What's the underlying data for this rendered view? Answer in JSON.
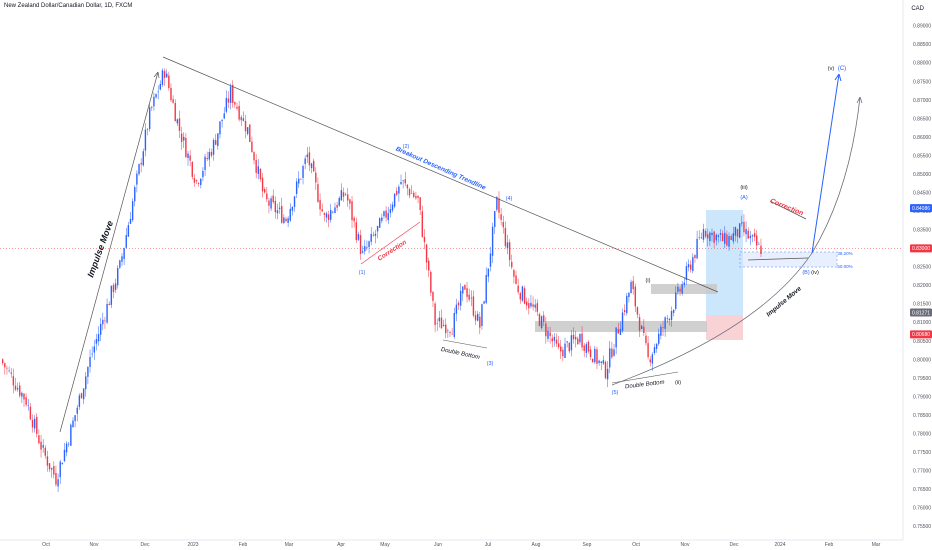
{
  "header": {
    "title": "New Zealand Dollar/Canadian Dollar, 1D, FXCM",
    "currency": "CAD"
  },
  "colors": {
    "up": "#2962ff",
    "down": "#f23645",
    "trendline": "#555555",
    "wave_blue": "#2962ff",
    "correction_red": "#f23645",
    "projection_blue": "#2962ff",
    "projection_gray": "#6a6d78",
    "box_blue": "#bbdefb",
    "box_red": "#f8c7cc",
    "box_gray": "#c8c8c8",
    "price_line": "#f23645"
  },
  "chart_data": {
    "type": "candlestick",
    "symbol": "New Zealand Dollar/Canadian Dollar",
    "timeframe": "1D",
    "source": "FXCM",
    "x_tick_labels": [
      "Oct",
      "Nov",
      "Dec",
      "2023",
      "Feb",
      "Mar",
      "Apr",
      "May",
      "Jun",
      "Jul",
      "Aug",
      "Sep",
      "Oct",
      "Nov",
      "Dec",
      "2024",
      "Feb",
      "Mar"
    ],
    "y_tick_labels": [
      "0.89000",
      "0.88500",
      "0.88000",
      "0.87500",
      "0.87000",
      "0.86500",
      "0.86000",
      "0.85500",
      "0.85000",
      "0.84500",
      "0.84000",
      "0.83500",
      "0.83000",
      "0.82500",
      "0.82000",
      "0.81500",
      "0.81000",
      "0.80500",
      "0.80000",
      "0.79500",
      "0.79000",
      "0.78500",
      "0.78000",
      "0.77500",
      "0.77000",
      "0.76500",
      "0.76000",
      "0.75500"
    ],
    "ylim": [
      0.7535,
      0.8935
    ],
    "price_labels": [
      {
        "text": "0.84086",
        "value": 0.84086,
        "color": "#2962ff"
      },
      {
        "text": "0.83000",
        "value": 0.83,
        "color": "#f23645"
      },
      {
        "text": "0.81271",
        "value": 0.81271,
        "color": "#6a6d78"
      },
      {
        "text": "0.80680",
        "value": 0.8068,
        "color": "#f23645"
      }
    ],
    "current_price": 0.83,
    "path_keypoints": [
      {
        "bar": 0,
        "price": 0.8
      },
      {
        "bar": 12,
        "price": 0.789
      },
      {
        "bar": 20,
        "price": 0.775
      },
      {
        "bar": 26,
        "price": 0.768
      },
      {
        "bar": 34,
        "price": 0.783
      },
      {
        "bar": 42,
        "price": 0.8
      },
      {
        "bar": 56,
        "price": 0.825
      },
      {
        "bar": 70,
        "price": 0.866
      },
      {
        "bar": 77,
        "price": 0.878
      },
      {
        "bar": 84,
        "price": 0.862
      },
      {
        "bar": 92,
        "price": 0.848
      },
      {
        "bar": 100,
        "price": 0.858
      },
      {
        "bar": 108,
        "price": 0.872
      },
      {
        "bar": 116,
        "price": 0.862
      },
      {
        "bar": 124,
        "price": 0.843
      },
      {
        "bar": 134,
        "price": 0.838
      },
      {
        "bar": 144,
        "price": 0.855
      },
      {
        "bar": 152,
        "price": 0.838
      },
      {
        "bar": 162,
        "price": 0.845
      },
      {
        "bar": 170,
        "price": 0.828
      },
      {
        "bar": 180,
        "price": 0.838
      },
      {
        "bar": 188,
        "price": 0.848
      },
      {
        "bar": 196,
        "price": 0.843
      },
      {
        "bar": 204,
        "price": 0.81
      },
      {
        "bar": 212,
        "price": 0.809
      },
      {
        "bar": 218,
        "price": 0.82
      },
      {
        "bar": 225,
        "price": 0.809
      },
      {
        "bar": 233,
        "price": 0.842
      },
      {
        "bar": 242,
        "price": 0.82
      },
      {
        "bar": 252,
        "price": 0.812
      },
      {
        "bar": 262,
        "price": 0.802
      },
      {
        "bar": 272,
        "price": 0.806
      },
      {
        "bar": 284,
        "price": 0.797
      },
      {
        "bar": 296,
        "price": 0.82
      },
      {
        "bar": 304,
        "price": 0.8
      },
      {
        "bar": 312,
        "price": 0.81
      },
      {
        "bar": 320,
        "price": 0.82
      },
      {
        "bar": 330,
        "price": 0.835
      },
      {
        "bar": 340,
        "price": 0.832
      },
      {
        "bar": 348,
        "price": 0.835
      },
      {
        "bar": 356,
        "price": 0.83
      }
    ],
    "annotations": [
      {
        "kind": "text",
        "text": "Impulse Move",
        "color": "#131722"
      },
      {
        "kind": "text",
        "text": "Breakout Descending Trendline",
        "color": "#2962ff"
      },
      {
        "kind": "text",
        "text": "Correction",
        "color": "#f23645"
      },
      {
        "kind": "text",
        "text": "Double Bottom",
        "color": "#131722"
      },
      {
        "kind": "text",
        "text": "Double Bottom",
        "color": "#131722"
      },
      {
        "kind": "text",
        "text": "Correction",
        "color": "#f23645"
      },
      {
        "kind": "text",
        "text": "Impulse Move",
        "color": "#131722"
      },
      {
        "kind": "wave",
        "text": "(1)",
        "color": "#2962ff"
      },
      {
        "kind": "wave",
        "text": "(2)",
        "color": "#2962ff"
      },
      {
        "kind": "wave",
        "text": "(3)",
        "color": "#2962ff"
      },
      {
        "kind": "wave",
        "text": "(4)",
        "color": "#2962ff"
      },
      {
        "kind": "wave",
        "text": "(5)",
        "color": "#2962ff"
      },
      {
        "kind": "wave",
        "text": "(i)",
        "color": "#131722"
      },
      {
        "kind": "wave",
        "text": "(ii)",
        "color": "#131722"
      },
      {
        "kind": "wave",
        "text": "(iii)",
        "color": "#131722"
      },
      {
        "kind": "wave",
        "text": "(A)",
        "color": "#2962ff"
      },
      {
        "kind": "wave",
        "text": "(B)",
        "color": "#2962ff"
      },
      {
        "kind": "wave",
        "text": "(iv)",
        "color": "#131722"
      },
      {
        "kind": "wave",
        "text": "(v)",
        "color": "#131722"
      },
      {
        "kind": "wave",
        "text": "(C)",
        "color": "#2962ff"
      },
      {
        "kind": "fib",
        "text": "38.20%",
        "color": "#2962ff"
      },
      {
        "kind": "fib",
        "text": "50.00%",
        "color": "#2962ff"
      }
    ]
  }
}
